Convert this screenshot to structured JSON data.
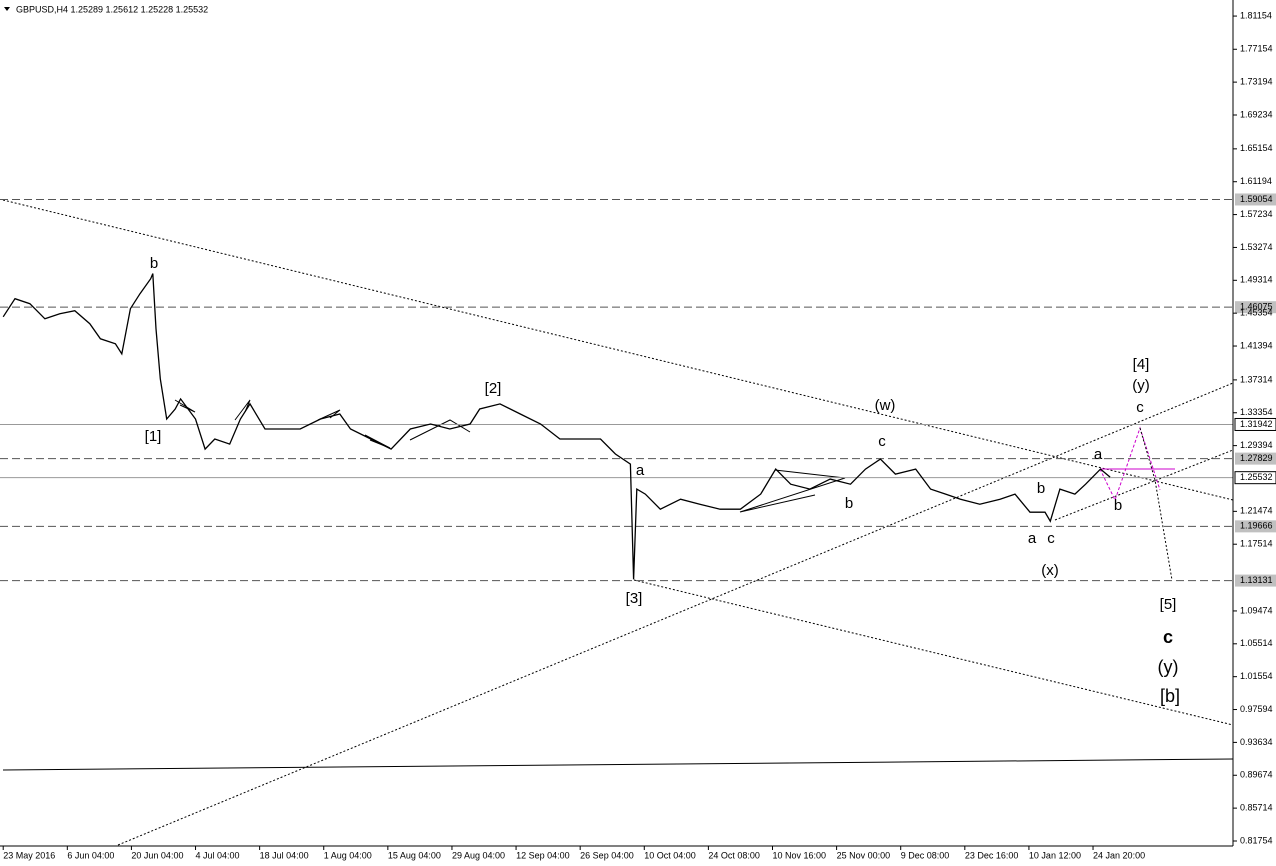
{
  "chart_data": {
    "type": "line",
    "title": "GBPUSD,H4  1.25289 1.25612 1.25228 1.25532",
    "color": "#000000",
    "x": [
      0,
      11,
      25,
      39,
      53,
      67,
      81,
      91,
      105,
      111,
      119,
      128,
      138,
      140,
      143,
      147,
      153,
      161,
      166,
      180,
      189,
      198,
      212,
      222,
      231,
      245,
      259,
      278,
      297,
      315,
      325,
      344,
      363,
      381,
      400,
      418,
      437,
      446,
      465,
      484,
      503,
      521,
      540,
      559,
      573,
      587,
      590,
      593,
      601,
      615,
      634,
      652,
      671,
      690,
      709,
      723,
      737,
      755,
      774,
      793,
      807,
      821,
      835,
      854,
      868,
      882,
      896,
      914,
      933,
      947,
      961,
      975,
      980,
      989,
      1003,
      1013,
      1027,
      1036
    ],
    "values": [
      1.4492,
      1.471,
      1.4649,
      1.4468,
      1.4529,
      1.4565,
      1.4408,
      1.4227,
      1.4166,
      1.4045,
      1.4589,
      1.477,
      1.4951,
      1.5012,
      1.4347,
      1.3744,
      1.326,
      1.3381,
      1.3502,
      1.326,
      1.2898,
      1.3019,
      1.2958,
      1.326,
      1.3442,
      1.314,
      1.314,
      1.314,
      1.326,
      1.3321,
      1.314,
      1.3019,
      1.2898,
      1.314,
      1.32,
      1.314,
      1.32,
      1.3381,
      1.3442,
      1.3321,
      1.32,
      1.3019,
      1.3019,
      1.3019,
      1.2838,
      1.2717,
      1.1328,
      1.2415,
      1.2355,
      1.2173,
      1.2294,
      1.2234,
      1.2173,
      1.2173,
      1.2355,
      1.2657,
      1.2475,
      1.2415,
      1.2536,
      1.2475,
      1.2657,
      1.2777,
      1.2596,
      1.2657,
      1.2415,
      1.2355,
      1.2294,
      1.2234,
      1.2294,
      1.2355,
      1.2137,
      1.2137,
      1.2029,
      1.2415,
      1.2355,
      1.2475,
      1.2657,
      1.256
    ],
    "xlim": [
      -3,
      1151
    ],
    "xticks": [
      {
        "value": 0,
        "label": "23 May 2016"
      },
      {
        "value": 60,
        "label": "6 Jun 04:00"
      },
      {
        "value": 120,
        "label": "20 Jun 04:00"
      },
      {
        "value": 180,
        "label": "4 Jul 04:00"
      },
      {
        "value": 240,
        "label": "18 Jul 04:00"
      },
      {
        "value": 300,
        "label": "1 Aug 04:00"
      },
      {
        "value": 360,
        "label": "15 Aug 04:00"
      },
      {
        "value": 420,
        "label": "29 Aug 04:00"
      },
      {
        "value": 480,
        "label": "12 Sep 04:00"
      },
      {
        "value": 540,
        "label": "26 Sep 04:00"
      },
      {
        "value": 600,
        "label": "10 Oct 04:00"
      },
      {
        "value": 660,
        "label": "24 Oct 08:00"
      },
      {
        "value": 720,
        "label": "10 Nov 16:00"
      },
      {
        "value": 780,
        "label": "25 Nov 00:00"
      },
      {
        "value": 840,
        "label": "9 Dec 08:00"
      },
      {
        "value": 900,
        "label": "23 Dec 16:00"
      },
      {
        "value": 960,
        "label": "10 Jan 12:00"
      },
      {
        "value": 1020,
        "label": "24 Jan 20:00"
      }
    ],
    "ylim": [
      0.8115,
      1.8309
    ],
    "yticks": [
      1.81154,
      1.77154,
      1.73194,
      1.69234,
      1.65154,
      1.61194,
      1.57234,
      1.53274,
      1.49314,
      1.45354,
      1.41394,
      1.37314,
      1.33354,
      1.29394,
      1.21474,
      1.17514,
      1.09474,
      1.05514,
      1.01554,
      0.97594,
      0.93634,
      0.89674,
      0.85714,
      0.81754
    ],
    "levels": [
      {
        "value": 1.59054,
        "dashed": true
      },
      {
        "value": 1.46075,
        "dashed": true
      },
      {
        "value": 1.31942,
        "dashed": false
      },
      {
        "value": 1.27829,
        "dashed": true
      },
      {
        "value": 1.25532,
        "dashed": false
      },
      {
        "value": 1.19666,
        "dashed": true
      },
      {
        "value": 1.13131,
        "dashed": true
      }
    ],
    "annotations": [
      {
        "text": "b",
        "color": "#0000ff"
      },
      {
        "text": "[1]",
        "color": "#ff0000"
      },
      {
        "text": "[2]",
        "color": "#ff0000"
      },
      {
        "text": "a",
        "color": "#0000ff"
      },
      {
        "text": "[3]",
        "color": "#ff0000"
      },
      {
        "text": "c",
        "color": "#0000ff"
      },
      {
        "text": "(w)",
        "color": "#008000"
      },
      {
        "text": "b",
        "color": "#0000ff"
      },
      {
        "text": "b",
        "color": "#0000ff"
      },
      {
        "text": "a",
        "color": "#0000ff"
      },
      {
        "text": "c",
        "color": "#0000ff"
      },
      {
        "text": "(x)",
        "color": "#008000"
      },
      {
        "text": "a",
        "color": "#0000ff"
      },
      {
        "text": "b",
        "color": "#0000ff"
      },
      {
        "text": "c",
        "color": "#0000ff"
      },
      {
        "text": "(y)",
        "color": "#008000"
      },
      {
        "text": "[4]",
        "color": "#ff0000"
      },
      {
        "text": "[5]",
        "color": "#ff0000"
      },
      {
        "text": "c",
        "color": "#0000ff"
      },
      {
        "text": "(y)",
        "color": "#008000"
      },
      {
        "text": "[b]",
        "color": "#ff0000"
      }
    ]
  }
}
